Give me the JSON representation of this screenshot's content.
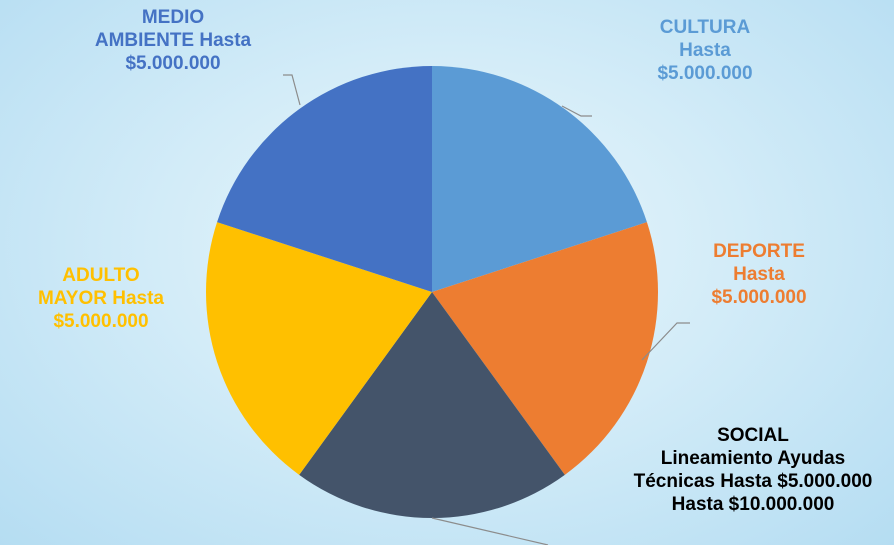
{
  "chart_data": {
    "type": "pie",
    "slices": [
      {
        "name": "CULTURA",
        "value": 5000000,
        "color": "#5b9bd5",
        "label": [
          "CULTURA",
          "Hasta",
          "$5.000.000"
        ]
      },
      {
        "name": "DEPORTE",
        "value": 5000000,
        "color": "#ed7d31",
        "label": [
          "DEPORTE",
          "Hasta",
          "$5.000.000"
        ]
      },
      {
        "name": "SOCIAL",
        "value": 5000000,
        "color": "#44546a",
        "label": [
          "SOCIAL",
          "Lineamiento Ayudas",
          "Técnicas Hasta $5.000.000",
          "Hasta $10.000.000"
        ]
      },
      {
        "name": "ADULTO MAYOR",
        "value": 5000000,
        "color": "#ffc000",
        "label": [
          "ADULTO",
          "MAYOR Hasta",
          "$5.000.000"
        ]
      },
      {
        "name": "MEDIO AMBIENTE",
        "value": 5000000,
        "color": "#4472c4",
        "label": [
          "MEDIO",
          "AMBIENTE Hasta",
          "$5.000.000"
        ]
      }
    ],
    "label_colors": {
      "CULTURA": "#5b9bd5",
      "DEPORTE": "#ed7d31",
      "SOCIAL": "#000000",
      "ADULTO MAYOR": "#ffc000",
      "MEDIO AMBIENTE": "#4472c4"
    }
  }
}
